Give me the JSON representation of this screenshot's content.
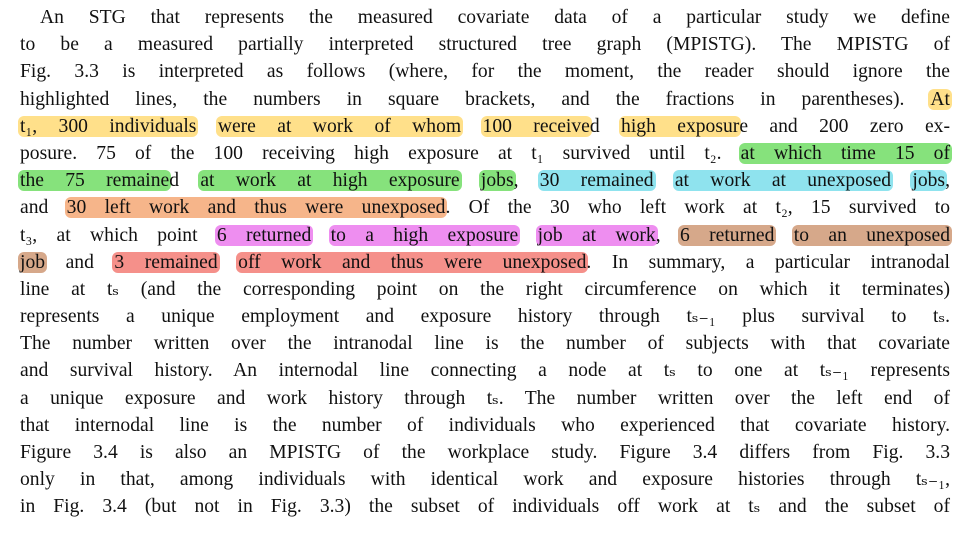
{
  "lines": [
    [
      {
        "t": "An STG that represents the measured covariate data of a particular study we define"
      }
    ],
    [
      {
        "t": "to be a measured partially interpreted structured tree graph (MPISTG). The MPISTG of"
      }
    ],
    [
      {
        "t": "Fig. 3.3 is interpreted as follows (where, for the moment, the reader should ignore the"
      }
    ],
    [
      {
        "t": "highlighted lines, the numbers in square brackets, and the fractions in parentheses). "
      },
      {
        "t": "At",
        "h": "yellow"
      }
    ],
    [
      {
        "t": "t₁, 300 individuals",
        "h": "yellow"
      },
      {
        "t": " "
      },
      {
        "t": "were at work of whom",
        "h": "yellow"
      },
      {
        "t": " "
      },
      {
        "t": "100 receive",
        "h": "yellow"
      },
      {
        "t": "d "
      },
      {
        "t": "high exposur",
        "h": "yellow"
      },
      {
        "t": "e and 200 zero ex-"
      }
    ],
    [
      {
        "t": "posure. 75 of the 100 receiving high exposure at t₁ survived until t₂. "
      },
      {
        "t": "at which time 15 of",
        "h": "green"
      }
    ],
    [
      {
        "t": "the 75 remaine",
        "h": "green"
      },
      {
        "t": "d "
      },
      {
        "t": "at work at high exposure",
        "h": "green"
      },
      {
        "t": " "
      },
      {
        "t": "jobs",
        "h": "green"
      },
      {
        "t": ", "
      },
      {
        "t": "30 remained",
        "h": "cyan"
      },
      {
        "t": " "
      },
      {
        "t": "at work at unexposed",
        "h": "cyan"
      },
      {
        "t": " "
      },
      {
        "t": "jobs",
        "h": "cyan"
      },
      {
        "t": ","
      }
    ],
    [
      {
        "t": "and "
      },
      {
        "t": "30 left work and thus were unexposed",
        "h": "orange"
      },
      {
        "t": ". Of the 30 who left work at t₂, 15 survived to"
      }
    ],
    [
      {
        "t": "t₃, at which point "
      },
      {
        "t": "6 returned",
        "h": "magenta"
      },
      {
        "t": " "
      },
      {
        "t": "to a high exposure",
        "h": "magenta"
      },
      {
        "t": " "
      },
      {
        "t": "job at work",
        "h": "magenta"
      },
      {
        "t": ", "
      },
      {
        "t": "6 returned",
        "h": "brown"
      },
      {
        "t": " "
      },
      {
        "t": "to an unexposed",
        "h": "brown"
      }
    ],
    [
      {
        "t": "job",
        "h": "brown"
      },
      {
        "t": " and "
      },
      {
        "t": "3 remained",
        "h": "red"
      },
      {
        "t": " "
      },
      {
        "t": "off work and thus were unexposed",
        "h": "red"
      },
      {
        "t": ". In summary, a particular intranodal"
      }
    ],
    [
      {
        "t": "line at tₛ (and the corresponding point on the right circumference on which it terminates)"
      }
    ],
    [
      {
        "t": "represents a unique employment and exposure history through tₛ₋₁ plus survival to tₛ."
      }
    ],
    [
      {
        "t": "The number written over the intranodal line is the number of subjects with that covariate"
      }
    ],
    [
      {
        "t": "and survival history. An internodal line connecting a node at tₛ to one at tₛ₋₁ represents"
      }
    ],
    [
      {
        "t": "a unique exposure and work history through tₛ. The number written over the left end of"
      }
    ],
    [
      {
        "t": "that internodal line is the number of individuals who experienced that covariate history."
      }
    ],
    [
      {
        "t": "Figure 3.4 is also an MPISTG of the workplace study. Figure 3.4 differs from Fig. 3.3"
      }
    ],
    [
      {
        "t": "only in that, among individuals with identical work and exposure histories through tₛ₋₁,"
      }
    ],
    [
      {
        "t": "in Fig. 3.4 (but not in Fig. 3.3) the subset of individuals off work at tₛ and the subset of"
      }
    ]
  ],
  "highlight_colors": {
    "yellow": "#ffe08a",
    "green": "#86e27c",
    "cyan": "#8fe3ee",
    "orange": "#f6b58a",
    "magenta": "#ee8ef0",
    "brown": "#d6a88a",
    "red": "#f5908a"
  }
}
